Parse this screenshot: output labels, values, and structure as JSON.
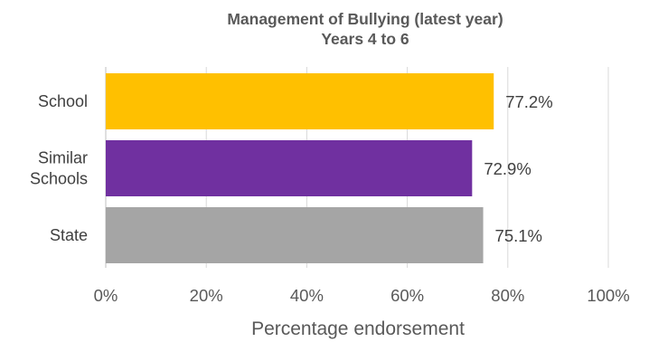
{
  "chart_data": {
    "type": "bar",
    "orientation": "horizontal",
    "title": "Management of Bullying (latest year)",
    "subtitle": "Years 4 to 6",
    "xlabel": "Percentage endorsement",
    "ylabel": "",
    "xlim": [
      0,
      100
    ],
    "x_ticks": [
      "0%",
      "20%",
      "40%",
      "60%",
      "80%",
      "100%"
    ],
    "x_tick_values": [
      0,
      20,
      40,
      60,
      80,
      100
    ],
    "grid": true,
    "legend": "none",
    "categories": [
      {
        "lines": [
          "School"
        ],
        "value": 77.2,
        "label": "77.2%",
        "color": "#FFC000"
      },
      {
        "lines": [
          "Similar",
          "Schools"
        ],
        "value": 72.9,
        "label": "72.9%",
        "color": "#7030A0"
      },
      {
        "lines": [
          "State"
        ],
        "value": 75.1,
        "label": "75.1%",
        "color": "#A5A5A5"
      }
    ]
  }
}
